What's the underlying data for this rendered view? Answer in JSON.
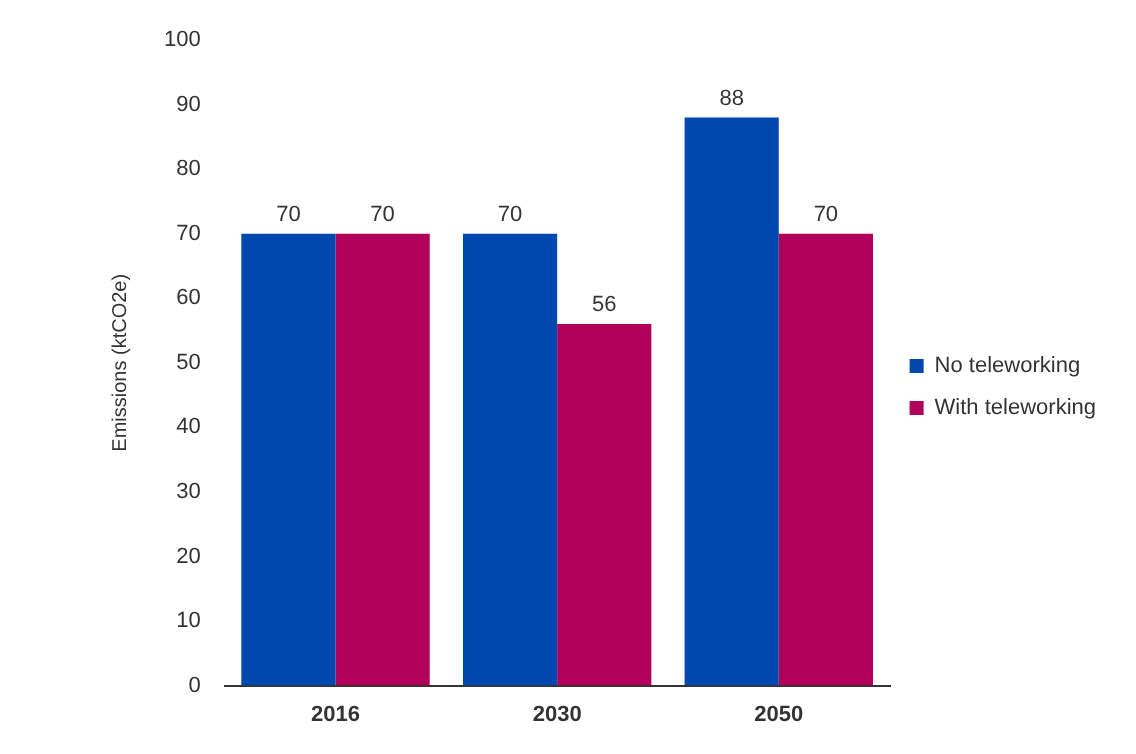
{
  "chart_data": {
    "type": "bar",
    "ylabel": "Emissions (ktCO2e)",
    "categories": [
      "2016",
      "2030",
      "2050"
    ],
    "series": [
      {
        "name": "No teleworking",
        "color": "#0047b0",
        "values": [
          70,
          70,
          88
        ]
      },
      {
        "name": "With teleworking",
        "color": "#b0005a",
        "values": [
          70,
          56,
          70
        ]
      }
    ],
    "ylim": [
      0,
      100
    ],
    "yticks": [
      0,
      10,
      20,
      30,
      40,
      50,
      60,
      70,
      80,
      90,
      100
    ],
    "grid": false,
    "legend": "right",
    "data_labels": true
  }
}
